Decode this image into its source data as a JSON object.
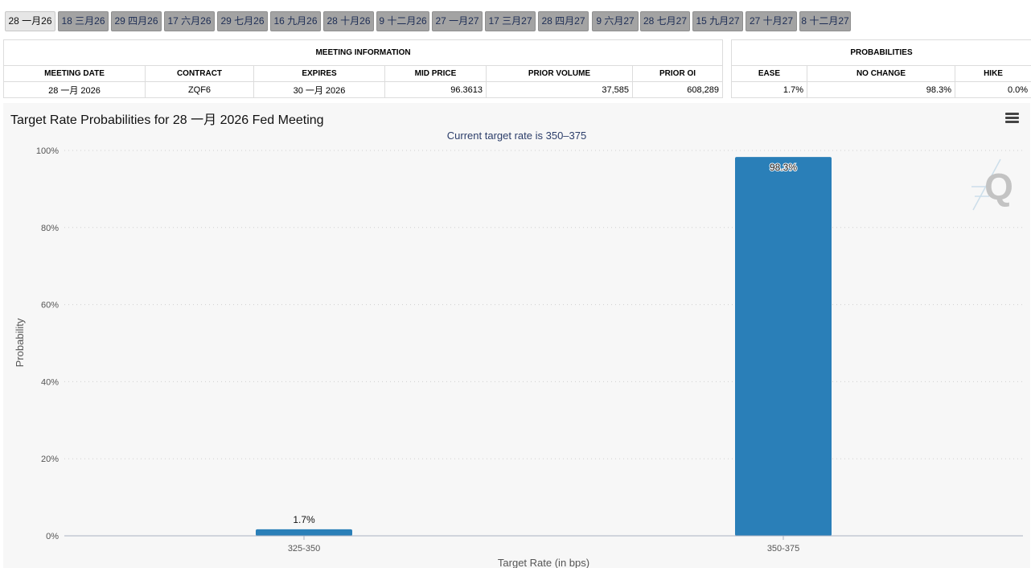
{
  "tabs": [
    {
      "label": "28 一月26",
      "active": true
    },
    {
      "label": "18 三月26",
      "active": false
    },
    {
      "label": "29 四月26",
      "active": false
    },
    {
      "label": "17 六月26",
      "active": false
    },
    {
      "label": "29 七月26",
      "active": false
    },
    {
      "label": "16 九月26",
      "active": false
    },
    {
      "label": "28 十月26",
      "active": false
    },
    {
      "label": "9 十二月26",
      "active": false
    },
    {
      "label": "27 一月27",
      "active": false
    },
    {
      "label": "17 三月27",
      "active": false
    },
    {
      "label": "28 四月27",
      "active": false
    },
    {
      "label": "9 六月27",
      "active": false
    },
    {
      "label": "28 七月27",
      "active": false
    },
    {
      "label": "15 九月27",
      "active": false
    },
    {
      "label": "27 十月27",
      "active": false
    },
    {
      "label": "8 十二月27",
      "active": false
    }
  ],
  "meeting_info": {
    "title": "MEETING INFORMATION",
    "headers": [
      "MEETING DATE",
      "CONTRACT",
      "EXPIRES",
      "MID PRICE",
      "PRIOR VOLUME",
      "PRIOR OI"
    ],
    "row": [
      "28 一月 2026",
      "ZQF6",
      "30 一月 2026",
      "96.3613",
      "37,585",
      "608,289"
    ]
  },
  "probabilities": {
    "title": "PROBABILITIES",
    "headers": [
      "EASE",
      "NO CHANGE",
      "HIKE"
    ],
    "row": [
      "1.7%",
      "98.3%",
      "0.0%"
    ]
  },
  "chart": {
    "title": "Target Rate Probabilities for 28 一月 2026 Fed Meeting",
    "subtitle": "Current target rate is 350–375",
    "menu_icon": "hamburger-menu-icon",
    "watermark_icon": "quikstrike-q-logo",
    "bar_color": "#2a7fb8"
  },
  "chart_data": {
    "type": "bar",
    "categories": [
      "325-350",
      "350-375"
    ],
    "values": [
      1.7,
      98.3
    ],
    "data_labels": [
      "1.7%",
      "98.3%"
    ],
    "title": "Target Rate Probabilities for 28 一月 2026 Fed Meeting",
    "subtitle": "Current target rate is 350–375",
    "xlabel": "Target Rate (in bps)",
    "ylabel": "Probability",
    "ylim": [
      0,
      100
    ],
    "yticks": [
      "0%",
      "20%",
      "40%",
      "60%",
      "80%",
      "100%"
    ],
    "grid": true
  }
}
